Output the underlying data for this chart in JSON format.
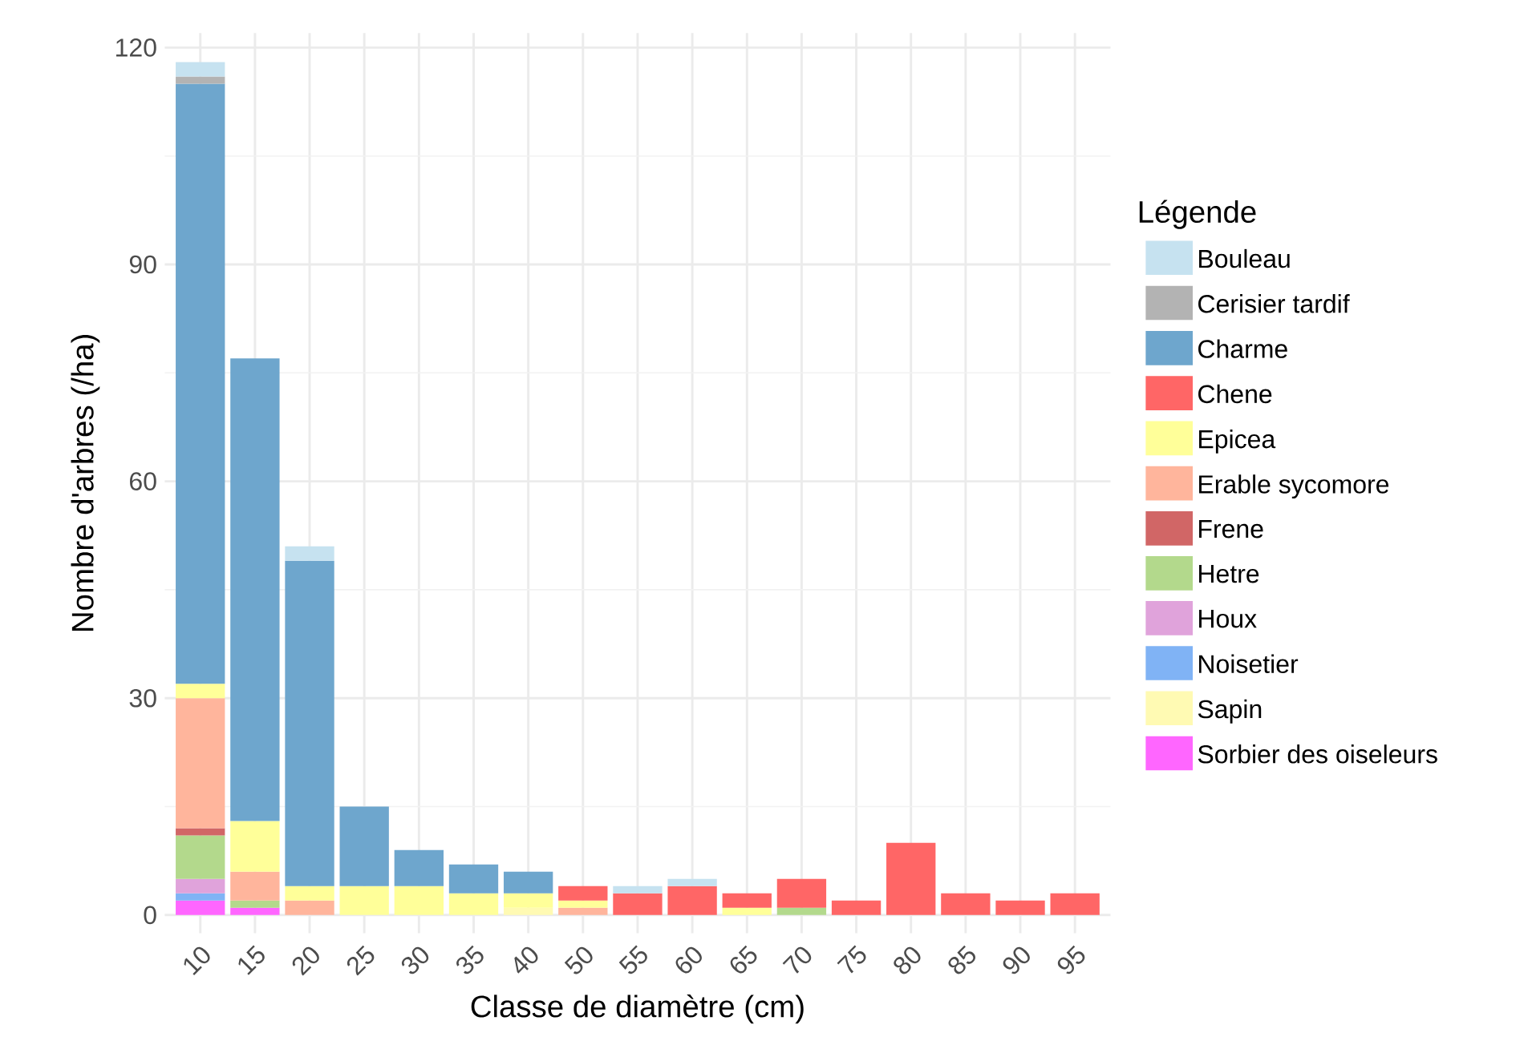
{
  "chart_data": {
    "type": "bar",
    "stacked": true,
    "xlabel": "Classe de diamètre (cm)",
    "ylabel": "Nombre d'arbres (/ha)",
    "legend_title": "Légende",
    "legend": "right",
    "grid": true,
    "categories": [
      "10",
      "15",
      "20",
      "25",
      "30",
      "35",
      "40",
      "50",
      "55",
      "60",
      "65",
      "70",
      "75",
      "80",
      "85",
      "90",
      "95"
    ],
    "ylim": [
      -2.5,
      122
    ],
    "yticks": [
      0,
      30,
      60,
      90,
      120
    ],
    "series": [
      {
        "name": "Sorbier des oiseleurs",
        "color": "#ff66ff",
        "values": [
          2,
          1,
          null,
          null,
          null,
          null,
          null,
          null,
          null,
          null,
          null,
          null,
          null,
          null,
          null,
          null,
          null
        ]
      },
      {
        "name": "Sapin",
        "color": "#fffab3",
        "values": [
          null,
          null,
          null,
          null,
          null,
          null,
          1,
          null,
          null,
          null,
          null,
          null,
          null,
          null,
          null,
          null,
          null
        ]
      },
      {
        "name": "Noisetier",
        "color": "#80b3f5",
        "values": [
          1,
          null,
          null,
          null,
          null,
          null,
          null,
          null,
          null,
          null,
          null,
          null,
          null,
          null,
          null,
          null,
          null
        ]
      },
      {
        "name": "Houx",
        "color": "#e0a3db",
        "values": [
          2,
          null,
          null,
          null,
          null,
          null,
          null,
          null,
          null,
          null,
          null,
          null,
          null,
          null,
          null,
          null,
          null
        ]
      },
      {
        "name": "Hetre",
        "color": "#b3d98c",
        "values": [
          6,
          1,
          null,
          null,
          null,
          null,
          null,
          null,
          null,
          null,
          null,
          1,
          null,
          null,
          null,
          null,
          null
        ]
      },
      {
        "name": "Frene",
        "color": "#d16666",
        "values": [
          1,
          null,
          null,
          null,
          null,
          null,
          null,
          null,
          null,
          null,
          null,
          null,
          null,
          null,
          null,
          null,
          null
        ]
      },
      {
        "name": "Erable sycomore",
        "color": "#ffb59c",
        "values": [
          18,
          4,
          2,
          null,
          null,
          null,
          null,
          1,
          null,
          null,
          null,
          null,
          null,
          null,
          null,
          null,
          null
        ]
      },
      {
        "name": "Epicea",
        "color": "#ffff99",
        "values": [
          2,
          7,
          2,
          4,
          4,
          3,
          2,
          1,
          null,
          null,
          1,
          null,
          null,
          null,
          null,
          null,
          null
        ]
      },
      {
        "name": "Chene",
        "color": "#ff6666",
        "values": [
          null,
          null,
          null,
          null,
          null,
          null,
          null,
          2,
          3,
          4,
          2,
          4,
          2,
          10,
          3,
          2,
          3
        ]
      },
      {
        "name": "Charme",
        "color": "#6ea6cd",
        "values": [
          83,
          64,
          45,
          11,
          5,
          4,
          3,
          null,
          null,
          null,
          null,
          null,
          null,
          null,
          null,
          null,
          null
        ]
      },
      {
        "name": "Cerisier tardif",
        "color": "#b3b3b3",
        "values": [
          1,
          null,
          null,
          null,
          null,
          null,
          null,
          null,
          null,
          null,
          null,
          null,
          null,
          null,
          null,
          null,
          null
        ]
      },
      {
        "name": "Bouleau",
        "color": "#c6e2f0",
        "values": [
          2,
          null,
          2,
          null,
          null,
          null,
          null,
          null,
          1,
          1,
          null,
          null,
          null,
          null,
          null,
          null,
          null
        ]
      }
    ]
  }
}
